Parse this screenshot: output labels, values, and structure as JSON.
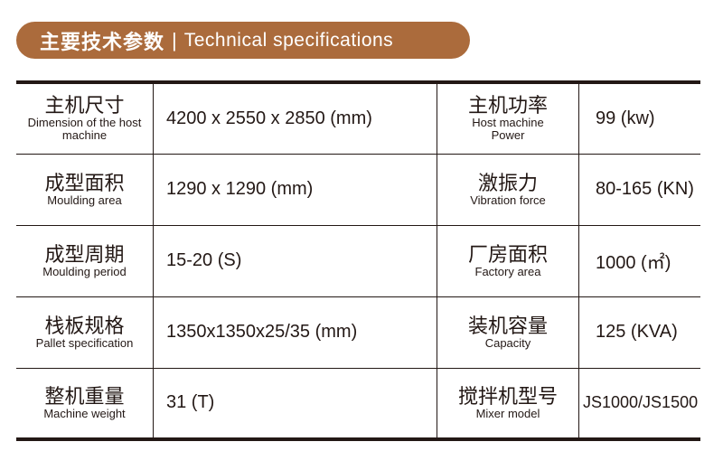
{
  "header": {
    "title_cn": "主要技术参数",
    "separator": "|",
    "title_en": "Technical specifications"
  },
  "rows": [
    {
      "l_cn": "主机尺寸",
      "l_en": "Dimension of the host machine",
      "l_val": "4200 x 2550 x 2850 (mm)",
      "r_cn": "主机功率",
      "r_en": "Host machine Power",
      "r_val": "99 (kw)"
    },
    {
      "l_cn": "成型面积",
      "l_en": "Moulding area",
      "l_val": "1290 x 1290 (mm)",
      "r_cn": "激振力",
      "r_en": "Vibration force",
      "r_val": "80-165 (KN)"
    },
    {
      "l_cn": "成型周期",
      "l_en": "Moulding period",
      "l_val": "15-20 (S)",
      "r_cn": "厂房面积",
      "r_en": "Factory area",
      "r_val": "1000 (㎡)"
    },
    {
      "l_cn": "栈板规格",
      "l_en": "Pallet specification",
      "l_val": "1350x1350x25/35 (mm)",
      "r_cn": "装机容量",
      "r_en": "Capacity",
      "r_val": "125 (KVA)"
    },
    {
      "l_cn": "整机重量",
      "l_en": "Machine weight",
      "l_val": "31 (T)",
      "r_cn": "搅拌机型号",
      "r_en": "Mixer model",
      "r_val": "JS1000/JS1500"
    }
  ]
}
